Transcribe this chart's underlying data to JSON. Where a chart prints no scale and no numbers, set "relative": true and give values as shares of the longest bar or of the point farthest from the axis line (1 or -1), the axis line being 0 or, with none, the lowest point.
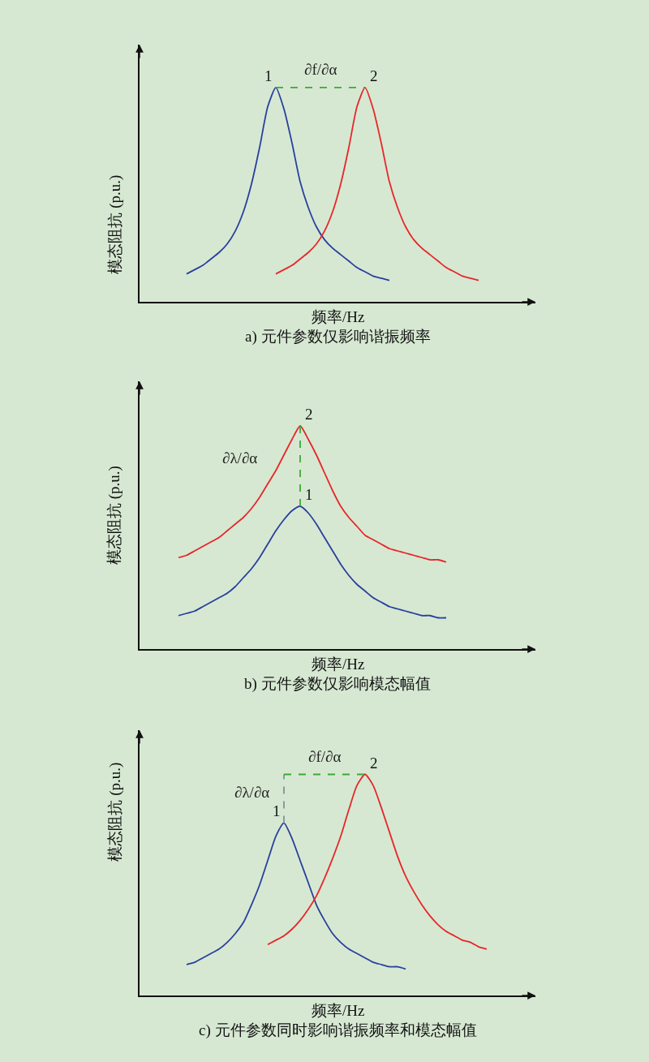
{
  "chart_data": [
    {
      "type": "line",
      "title": "a) 元件参数仅影响谐振频率",
      "xlabel": "频率/Hz",
      "ylabel": "模态阻抗 (p.u.)",
      "relative": true,
      "categories": [
        null,
        null,
        null,
        null,
        null,
        null,
        null,
        null,
        null,
        null,
        null,
        null,
        null,
        null,
        null,
        null,
        null,
        null,
        null,
        null,
        null,
        null,
        null,
        null,
        null,
        null,
        null,
        null,
        null,
        null,
        null,
        null,
        null,
        null,
        null,
        null,
        null,
        null,
        null,
        null,
        null,
        null,
        null,
        null,
        null,
        null,
        null,
        null
      ],
      "annotations": [
        "∂f/∂α"
      ],
      "series": [
        {
          "name": "1",
          "color": "#2a3f9d",
          "values": [
            null,
            null,
            null,
            null,
            null,
            0.13,
            0.15,
            0.17,
            0.2,
            0.23,
            0.27,
            0.33,
            0.42,
            0.55,
            0.72,
            0.91,
            1.0,
            0.9,
            0.74,
            0.56,
            0.44,
            0.35,
            0.29,
            0.25,
            0.22,
            0.19,
            0.16,
            0.14,
            0.12,
            0.11,
            0.1,
            null,
            null,
            null,
            null,
            null,
            null,
            null,
            null,
            null,
            null,
            null,
            null,
            null,
            null,
            null,
            null,
            null
          ]
        },
        {
          "name": "2",
          "color": "#e8262a",
          "values": [
            null,
            null,
            null,
            null,
            null,
            null,
            null,
            null,
            null,
            null,
            null,
            null,
            null,
            null,
            null,
            null,
            0.13,
            0.15,
            0.17,
            0.2,
            0.23,
            0.27,
            0.33,
            0.42,
            0.55,
            0.72,
            0.91,
            1.0,
            0.9,
            0.74,
            0.56,
            0.44,
            0.35,
            0.29,
            0.25,
            0.22,
            0.19,
            0.16,
            0.14,
            0.12,
            0.11,
            0.1,
            null,
            null,
            null,
            null,
            null,
            null
          ]
        }
      ]
    },
    {
      "type": "line",
      "title": "b) 元件参数仅影响模态幅值",
      "xlabel": "频率/Hz",
      "ylabel": "模态阻抗 (p.u.)",
      "relative": true,
      "categories": [
        null,
        null,
        null,
        null,
        null,
        null,
        null,
        null,
        null,
        null,
        null,
        null,
        null,
        null,
        null,
        null,
        null,
        null,
        null,
        null,
        null,
        null,
        null,
        null,
        null,
        null,
        null,
        null,
        null,
        null,
        null,
        null,
        null,
        null,
        null,
        null,
        null,
        null,
        null,
        null,
        null,
        null,
        null,
        null,
        null,
        null,
        null,
        null
      ],
      "annotations": [
        "∂λ/∂α"
      ],
      "series": [
        {
          "name": "1",
          "color": "#2a3f9d",
          "values": [
            null,
            null,
            null,
            null,
            0.15,
            0.16,
            0.17,
            0.19,
            0.21,
            0.23,
            0.25,
            0.28,
            0.32,
            0.36,
            0.41,
            0.47,
            0.53,
            0.58,
            0.62,
            0.64,
            0.61,
            0.56,
            0.5,
            0.44,
            0.38,
            0.33,
            0.29,
            0.26,
            0.23,
            0.21,
            0.19,
            0.18,
            0.17,
            0.16,
            0.15,
            0.15,
            0.14,
            0.14,
            null,
            null,
            null,
            null,
            null,
            null,
            null,
            null,
            null,
            null
          ]
        },
        {
          "name": "2",
          "color": "#e8262a",
          "values": [
            null,
            null,
            null,
            null,
            0.41,
            0.42,
            0.44,
            0.46,
            0.48,
            0.5,
            0.53,
            0.56,
            0.59,
            0.63,
            0.68,
            0.74,
            0.8,
            0.87,
            0.94,
            1.0,
            0.94,
            0.87,
            0.79,
            0.71,
            0.64,
            0.59,
            0.55,
            0.51,
            0.49,
            0.47,
            0.45,
            0.44,
            0.43,
            0.42,
            0.41,
            0.4,
            0.4,
            0.39,
            null,
            null,
            null,
            null,
            null,
            null,
            null,
            null,
            null,
            null
          ]
        }
      ]
    },
    {
      "type": "line",
      "title": "c) 元件参数同时影响谐振频率和模态幅值",
      "xlabel": "频率/Hz",
      "ylabel": "模态阻抗 (p.u.)",
      "relative": true,
      "categories": [
        null,
        null,
        null,
        null,
        null,
        null,
        null,
        null,
        null,
        null,
        null,
        null,
        null,
        null,
        null,
        null,
        null,
        null,
        null,
        null,
        null,
        null,
        null,
        null,
        null,
        null,
        null,
        null,
        null,
        null,
        null,
        null,
        null,
        null,
        null,
        null,
        null,
        null,
        null,
        null,
        null,
        null,
        null,
        null,
        null,
        null,
        null,
        null
      ],
      "annotations": [
        "∂f/∂α",
        "∂λ/∂α"
      ],
      "series": [
        {
          "name": "1",
          "color": "#2a3f9d",
          "values": [
            null,
            null,
            null,
            null,
            null,
            0.14,
            0.15,
            0.17,
            0.19,
            0.21,
            0.24,
            0.28,
            0.33,
            0.41,
            0.5,
            0.61,
            0.72,
            0.78,
            0.71,
            0.61,
            0.51,
            0.41,
            0.34,
            0.28,
            0.24,
            0.21,
            0.19,
            0.17,
            0.15,
            0.14,
            0.13,
            0.13,
            0.12,
            null,
            null,
            null,
            null,
            null,
            null,
            null,
            null,
            null,
            null,
            null,
            null,
            null,
            null,
            null
          ]
        },
        {
          "name": "2",
          "color": "#e8262a",
          "values": [
            null,
            null,
            null,
            null,
            null,
            null,
            null,
            null,
            null,
            null,
            null,
            null,
            null,
            null,
            null,
            0.23,
            0.25,
            0.27,
            0.3,
            0.34,
            0.39,
            0.45,
            0.53,
            0.62,
            0.72,
            0.84,
            0.95,
            1.0,
            0.95,
            0.85,
            0.74,
            0.63,
            0.54,
            0.47,
            0.41,
            0.36,
            0.32,
            0.29,
            0.27,
            0.25,
            0.24,
            0.22,
            0.21,
            null,
            null,
            null,
            null,
            null
          ]
        }
      ]
    }
  ]
}
